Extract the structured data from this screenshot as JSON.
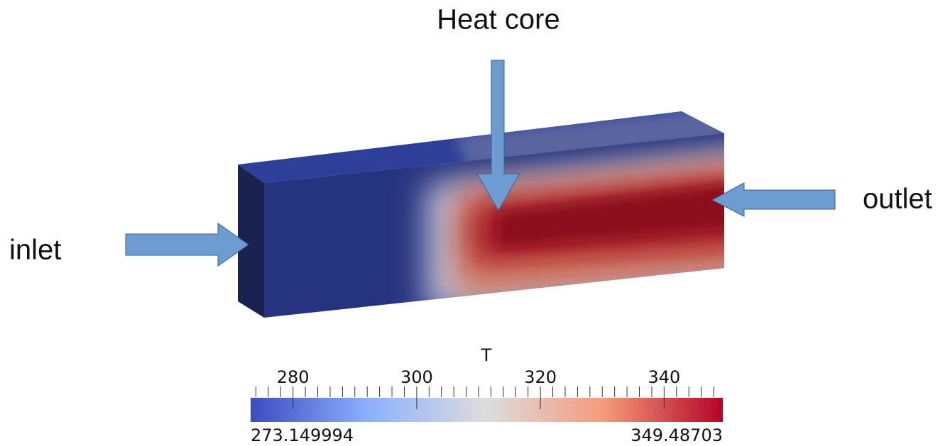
{
  "labels": {
    "heat_core": "Heat core",
    "inlet": "inlet",
    "outlet": "outlet"
  },
  "colorbar": {
    "title": "T",
    "min": 273.149994,
    "max": 349.48703,
    "ticks": [
      280,
      300,
      320,
      340
    ],
    "minor_tick_step": 2,
    "colormap": [
      "#3b4cc0",
      "#8db0fe",
      "#dddddd",
      "#f49a7b",
      "#b40426"
    ]
  }
}
